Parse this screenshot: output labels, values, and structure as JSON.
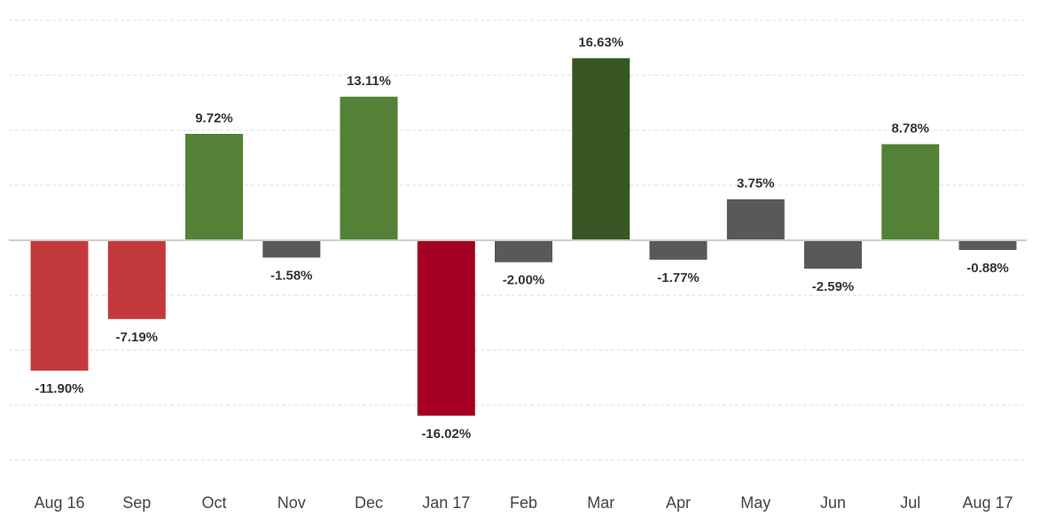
{
  "chart_data": {
    "type": "bar",
    "categories": [
      "Aug 16",
      "Sep",
      "Oct",
      "Nov",
      "Dec",
      "Jan 17",
      "Feb",
      "Mar",
      "Apr",
      "May",
      "Jun",
      "Jul",
      "Aug 17"
    ],
    "values": [
      -11.9,
      -7.19,
      9.72,
      -1.58,
      13.11,
      -16.02,
      -2.0,
      16.63,
      -1.77,
      3.75,
      -2.59,
      8.78,
      -0.88
    ],
    "value_labels": [
      "-11.90%",
      "-7.19%",
      "9.72%",
      "-1.58%",
      "13.11%",
      "-16.02%",
      "-2.00%",
      "16.63%",
      "-1.77%",
      "3.75%",
      "-2.59%",
      "8.78%",
      "-0.88%"
    ],
    "bar_colors": [
      "#c4393b",
      "#c4393b",
      "#538135",
      "#595959",
      "#538135",
      "#a50021",
      "#595959",
      "#375623",
      "#595959",
      "#595959",
      "#595959",
      "#538135",
      "#595959"
    ],
    "ylim": [
      -20,
      20
    ],
    "grid": true,
    "gridline_color": "#dddddd",
    "zero_line_color": "#cccccc",
    "title": "",
    "xlabel": "",
    "ylabel": ""
  }
}
